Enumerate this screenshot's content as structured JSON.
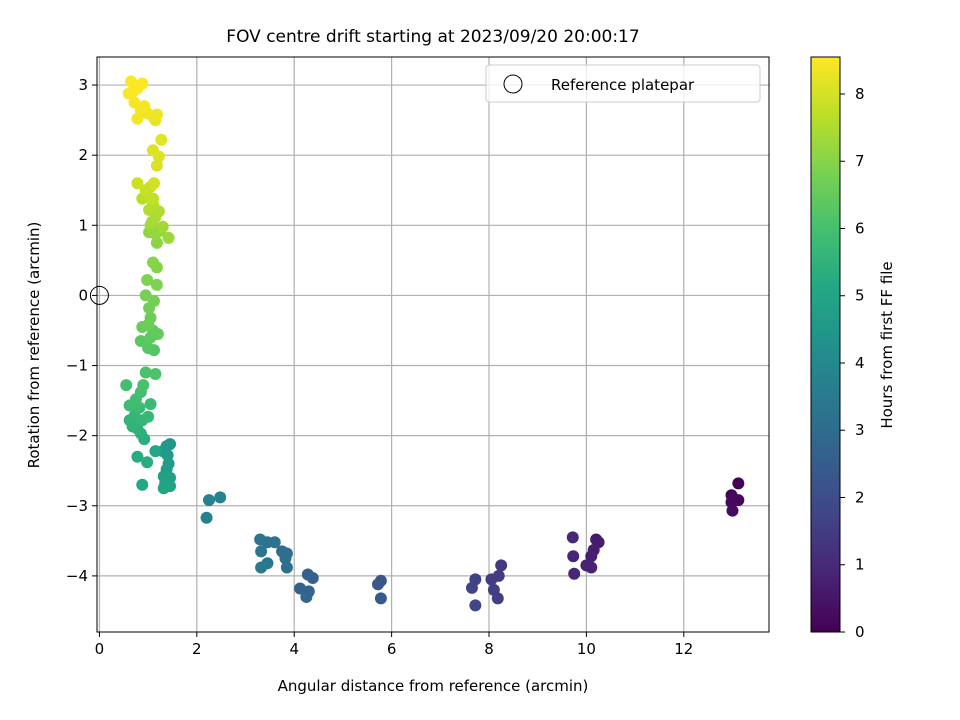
{
  "chart_data": {
    "type": "scatter",
    "title": "FOV centre drift starting at 2023/09/20 20:00:17",
    "xlabel": "Angular distance from reference (arcmin)",
    "ylabel": "Rotation from reference (arcmin)",
    "xlim": [
      -0.05,
      13.75
    ],
    "ylim": [
      -4.8,
      3.4
    ],
    "xticks": [
      0,
      2,
      4,
      6,
      8,
      10,
      12
    ],
    "yticks": [
      -4,
      -3,
      -2,
      -1,
      0,
      1,
      2,
      3
    ],
    "grid": true,
    "legend": {
      "placement": "upper-right",
      "entries": [
        "Reference platepar"
      ]
    },
    "reference_point": {
      "x": 0,
      "y": 0,
      "marker": "open-circle"
    },
    "colorbar": {
      "label": "Hours from first FF file",
      "min": 0,
      "max": 8.55,
      "ticks": [
        0,
        1,
        2,
        3,
        4,
        5,
        6,
        7,
        8
      ],
      "colormap": "viridis"
    },
    "series": [
      {
        "points": [
          {
            "x": 13.12,
            "y": -2.68,
            "h": 0.05
          },
          {
            "x": 12.98,
            "y": -2.85,
            "h": 0.1
          },
          {
            "x": 13.12,
            "y": -2.92,
            "h": 0.15
          },
          {
            "x": 12.98,
            "y": -2.95,
            "h": 0.2
          },
          {
            "x": 13.0,
            "y": -3.07,
            "h": 0.25
          },
          {
            "x": 10.2,
            "y": -3.48,
            "h": 0.6
          },
          {
            "x": 10.25,
            "y": -3.52,
            "h": 0.65
          },
          {
            "x": 10.15,
            "y": -3.63,
            "h": 0.7
          },
          {
            "x": 10.1,
            "y": -3.72,
            "h": 0.75
          },
          {
            "x": 10.0,
            "y": -3.85,
            "h": 0.8
          },
          {
            "x": 10.1,
            "y": -3.88,
            "h": 0.85
          },
          {
            "x": 9.73,
            "y": -3.72,
            "h": 0.9
          },
          {
            "x": 9.75,
            "y": -3.97,
            "h": 0.95
          },
          {
            "x": 9.72,
            "y": -3.45,
            "h": 1.0
          },
          {
            "x": 8.25,
            "y": -3.85,
            "h": 1.4
          },
          {
            "x": 8.2,
            "y": -4.0,
            "h": 1.45
          },
          {
            "x": 8.05,
            "y": -4.05,
            "h": 1.5
          },
          {
            "x": 8.1,
            "y": -4.2,
            "h": 1.55
          },
          {
            "x": 8.18,
            "y": -4.32,
            "h": 1.6
          },
          {
            "x": 7.72,
            "y": -4.05,
            "h": 1.65
          },
          {
            "x": 7.65,
            "y": -4.17,
            "h": 1.7
          },
          {
            "x": 7.72,
            "y": -4.42,
            "h": 1.75
          },
          {
            "x": 5.78,
            "y": -4.07,
            "h": 2.3
          },
          {
            "x": 5.72,
            "y": -4.12,
            "h": 2.35
          },
          {
            "x": 5.78,
            "y": -4.32,
            "h": 2.4
          },
          {
            "x": 4.38,
            "y": -4.03,
            "h": 2.6
          },
          {
            "x": 4.28,
            "y": -3.98,
            "h": 2.65
          },
          {
            "x": 4.12,
            "y": -4.18,
            "h": 2.7
          },
          {
            "x": 4.3,
            "y": -4.22,
            "h": 2.75
          },
          {
            "x": 4.25,
            "y": -4.3,
            "h": 2.8
          },
          {
            "x": 3.85,
            "y": -3.68,
            "h": 3.0
          },
          {
            "x": 3.75,
            "y": -3.65,
            "h": 3.05
          },
          {
            "x": 3.82,
            "y": -3.75,
            "h": 3.1
          },
          {
            "x": 3.85,
            "y": -3.88,
            "h": 3.15
          },
          {
            "x": 3.6,
            "y": -3.52,
            "h": 3.2
          },
          {
            "x": 3.45,
            "y": -3.52,
            "h": 3.25
          },
          {
            "x": 3.3,
            "y": -3.48,
            "h": 3.3
          },
          {
            "x": 3.32,
            "y": -3.65,
            "h": 3.35
          },
          {
            "x": 3.45,
            "y": -3.82,
            "h": 3.4
          },
          {
            "x": 3.32,
            "y": -3.88,
            "h": 3.45
          },
          {
            "x": 2.2,
            "y": -3.17,
            "h": 3.7
          },
          {
            "x": 2.25,
            "y": -2.92,
            "h": 3.75
          },
          {
            "x": 2.48,
            "y": -2.88,
            "h": 3.8
          },
          {
            "x": 1.45,
            "y": -2.12,
            "h": 4.5
          },
          {
            "x": 1.38,
            "y": -2.15,
            "h": 4.55
          },
          {
            "x": 1.3,
            "y": -2.22,
            "h": 4.6
          },
          {
            "x": 1.4,
            "y": -2.28,
            "h": 4.65
          },
          {
            "x": 1.42,
            "y": -2.4,
            "h": 4.7
          },
          {
            "x": 1.38,
            "y": -2.48,
            "h": 4.75
          },
          {
            "x": 1.45,
            "y": -2.6,
            "h": 4.8
          },
          {
            "x": 1.32,
            "y": -2.58,
            "h": 4.85
          },
          {
            "x": 1.35,
            "y": -2.68,
            "h": 4.9
          },
          {
            "x": 1.45,
            "y": -2.72,
            "h": 4.95
          },
          {
            "x": 1.32,
            "y": -2.75,
            "h": 5.0
          },
          {
            "x": 1.15,
            "y": -2.22,
            "h": 5.05
          },
          {
            "x": 0.88,
            "y": -2.7,
            "h": 5.1
          },
          {
            "x": 0.78,
            "y": -2.3,
            "h": 5.25
          },
          {
            "x": 0.98,
            "y": -2.38,
            "h": 5.3
          },
          {
            "x": 0.92,
            "y": -2.05,
            "h": 5.35
          },
          {
            "x": 0.85,
            "y": -1.97,
            "h": 5.4
          },
          {
            "x": 0.78,
            "y": -1.9,
            "h": 5.45
          },
          {
            "x": 0.68,
            "y": -1.87,
            "h": 5.5
          },
          {
            "x": 0.62,
            "y": -1.78,
            "h": 5.55
          },
          {
            "x": 0.72,
            "y": -1.72,
            "h": 5.6
          },
          {
            "x": 0.88,
            "y": -1.78,
            "h": 5.65
          },
          {
            "x": 1.0,
            "y": -1.73,
            "h": 5.7
          },
          {
            "x": 1.05,
            "y": -1.55,
            "h": 5.75
          },
          {
            "x": 0.82,
            "y": -1.6,
            "h": 5.8
          },
          {
            "x": 0.62,
            "y": -1.57,
            "h": 5.85
          },
          {
            "x": 0.75,
            "y": -1.48,
            "h": 5.9
          },
          {
            "x": 0.55,
            "y": -1.28,
            "h": 5.95
          },
          {
            "x": 0.85,
            "y": -1.38,
            "h": 6.0
          },
          {
            "x": 0.9,
            "y": -1.28,
            "h": 6.05
          },
          {
            "x": 0.95,
            "y": -1.1,
            "h": 6.1
          },
          {
            "x": 1.15,
            "y": -1.12,
            "h": 6.15
          },
          {
            "x": 1.12,
            "y": -0.78,
            "h": 6.25
          },
          {
            "x": 1.0,
            "y": -0.75,
            "h": 6.3
          },
          {
            "x": 0.85,
            "y": -0.65,
            "h": 6.35
          },
          {
            "x": 1.05,
            "y": -0.6,
            "h": 6.4
          },
          {
            "x": 1.1,
            "y": -0.5,
            "h": 6.45
          },
          {
            "x": 1.2,
            "y": -0.55,
            "h": 6.5
          },
          {
            "x": 0.88,
            "y": -0.45,
            "h": 6.55
          },
          {
            "x": 1.0,
            "y": -0.42,
            "h": 6.6
          },
          {
            "x": 1.05,
            "y": -0.32,
            "h": 6.65
          },
          {
            "x": 1.02,
            "y": -0.18,
            "h": 6.7
          },
          {
            "x": 1.12,
            "y": -0.08,
            "h": 6.75
          },
          {
            "x": 0.95,
            "y": 0.0,
            "h": 6.8
          },
          {
            "x": 1.18,
            "y": 0.15,
            "h": 6.85
          },
          {
            "x": 0.98,
            "y": 0.22,
            "h": 6.9
          },
          {
            "x": 1.18,
            "y": 0.4,
            "h": 6.95
          },
          {
            "x": 1.1,
            "y": 0.47,
            "h": 7.0
          },
          {
            "x": 1.18,
            "y": 0.75,
            "h": 7.05
          },
          {
            "x": 1.02,
            "y": 0.9,
            "h": 7.1
          },
          {
            "x": 1.15,
            "y": 0.88,
            "h": 7.15
          },
          {
            "x": 1.25,
            "y": 0.92,
            "h": 7.2
          },
          {
            "x": 1.42,
            "y": 0.82,
            "h": 7.25
          },
          {
            "x": 1.05,
            "y": 1.0,
            "h": 7.3
          },
          {
            "x": 1.3,
            "y": 0.98,
            "h": 7.35
          },
          {
            "x": 1.08,
            "y": 1.05,
            "h": 7.4
          },
          {
            "x": 1.15,
            "y": 1.12,
            "h": 7.45
          },
          {
            "x": 1.22,
            "y": 1.2,
            "h": 7.5
          },
          {
            "x": 1.02,
            "y": 1.22,
            "h": 7.55
          },
          {
            "x": 1.1,
            "y": 1.3,
            "h": 7.6
          },
          {
            "x": 0.88,
            "y": 1.38,
            "h": 7.65
          },
          {
            "x": 1.0,
            "y": 1.4,
            "h": 7.7
          },
          {
            "x": 1.1,
            "y": 1.38,
            "h": 7.75
          },
          {
            "x": 0.95,
            "y": 1.5,
            "h": 7.8
          },
          {
            "x": 1.05,
            "y": 1.55,
            "h": 7.85
          },
          {
            "x": 0.78,
            "y": 1.6,
            "h": 7.9
          },
          {
            "x": 1.12,
            "y": 1.6,
            "h": 7.95
          },
          {
            "x": 1.18,
            "y": 1.85,
            "h": 8.05
          },
          {
            "x": 1.22,
            "y": 1.98,
            "h": 8.1
          },
          {
            "x": 1.1,
            "y": 2.07,
            "h": 8.15
          },
          {
            "x": 1.27,
            "y": 2.22,
            "h": 8.2
          },
          {
            "x": 1.15,
            "y": 2.5,
            "h": 8.25
          },
          {
            "x": 1.1,
            "y": 2.55,
            "h": 8.3
          },
          {
            "x": 1.18,
            "y": 2.58,
            "h": 8.35
          },
          {
            "x": 0.98,
            "y": 2.6,
            "h": 8.38
          },
          {
            "x": 0.85,
            "y": 2.65,
            "h": 8.4
          },
          {
            "x": 0.78,
            "y": 2.52,
            "h": 8.42
          },
          {
            "x": 0.92,
            "y": 2.7,
            "h": 8.44
          },
          {
            "x": 0.72,
            "y": 2.75,
            "h": 8.46
          },
          {
            "x": 0.68,
            "y": 2.9,
            "h": 8.48
          },
          {
            "x": 0.6,
            "y": 2.88,
            "h": 8.5
          },
          {
            "x": 0.78,
            "y": 2.95,
            "h": 8.51
          },
          {
            "x": 0.88,
            "y": 3.02,
            "h": 8.52
          },
          {
            "x": 0.65,
            "y": 3.05,
            "h": 8.53
          }
        ]
      }
    ]
  }
}
